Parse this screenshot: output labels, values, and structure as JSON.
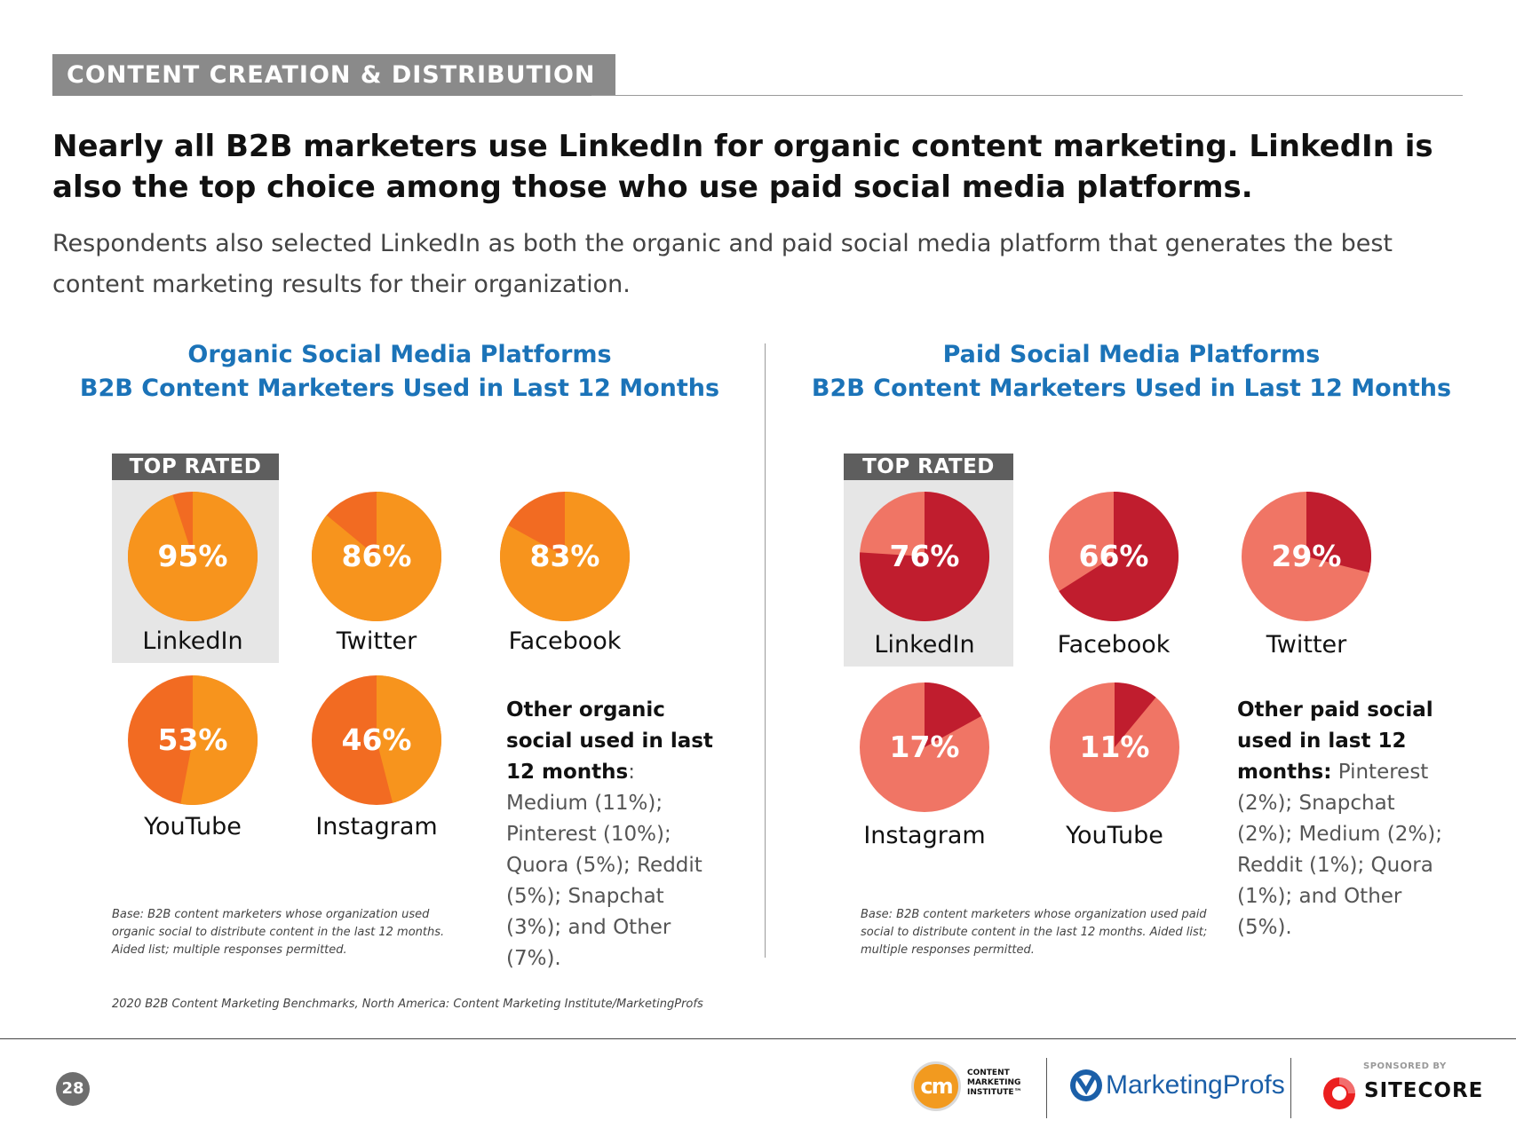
{
  "section_tag": "CONTENT CREATION & DISTRIBUTION",
  "headline": "Nearly all B2B marketers use LinkedIn for organic content marketing. LinkedIn is also the top choice among those who use paid social media platforms.",
  "subhead": "Respondents also selected LinkedIn as both the organic and paid social media platform that generates the best content marketing results for their organization.",
  "top_rated_label": "TOP RATED",
  "chart_data": [
    {
      "type": "pie",
      "title": "Organic Social Media Platforms",
      "subtitle": "B2B Content Marketers Used in Last 12 Months",
      "colors": {
        "used": "#f7941d",
        "not_used": "#f26b22",
        "top_rated_bg": "#e6e6e6"
      },
      "series": [
        {
          "name": "LinkedIn",
          "value": 95,
          "label": "95%"
        },
        {
          "name": "Twitter",
          "value": 86,
          "label": "86%"
        },
        {
          "name": "Facebook",
          "value": 83,
          "label": "83%"
        },
        {
          "name": "YouTube",
          "value": 53,
          "label": "53%"
        },
        {
          "name": "Instagram",
          "value": 46,
          "label": "46%"
        }
      ],
      "top_rated": "LinkedIn",
      "other_heading": "Other organic social used in last 12 months",
      "other_text": ": Medium (11%); Pinterest (10%); Quora (5%); Reddit (5%); Snapchat (3%); and Other (7%).",
      "base_note": "Base: B2B content marketers whose organization used organic social to distribute content in the last 12 months. Aided list; multiple responses permitted."
    },
    {
      "type": "pie",
      "title": "Paid Social Media Platforms",
      "subtitle": "B2B Content Marketers Used in Last 12 Months",
      "colors": {
        "used": "#c01d2e",
        "not_used": "#f07565",
        "top_rated_bg": "#e6e6e6"
      },
      "series": [
        {
          "name": "LinkedIn",
          "value": 76,
          "label": "76%"
        },
        {
          "name": "Facebook",
          "value": 66,
          "label": "66%"
        },
        {
          "name": "Twitter",
          "value": 29,
          "label": "29%"
        },
        {
          "name": "Instagram",
          "value": 17,
          "label": "17%"
        },
        {
          "name": "YouTube",
          "value": 11,
          "label": "11%"
        }
      ],
      "top_rated": "LinkedIn",
      "other_heading": "Other paid social used in last 12 months:",
      "other_text": " Pinterest (2%); Snapchat (2%); Medium (2%); Reddit (1%); Quora (1%); and Other (5%).",
      "base_note": "Base: B2B content marketers whose organization used paid social to distribute content in the last 12 months. Aided list; multiple responses permitted."
    }
  ],
  "source_note": "2020 B2B Content Marketing Benchmarks, North America: Content Marketing Institute/MarketingProfs",
  "footer": {
    "page_number": "28",
    "cmi_mark": "cm",
    "cmi_wordmark": [
      "CONTENT",
      "MARKETING",
      "INSTITUTE™"
    ],
    "marketingprofs_wordmark": "MarketingProfs",
    "sponsored_label": "SPONSORED BY",
    "sitecore_wordmark": "SITECORE"
  }
}
